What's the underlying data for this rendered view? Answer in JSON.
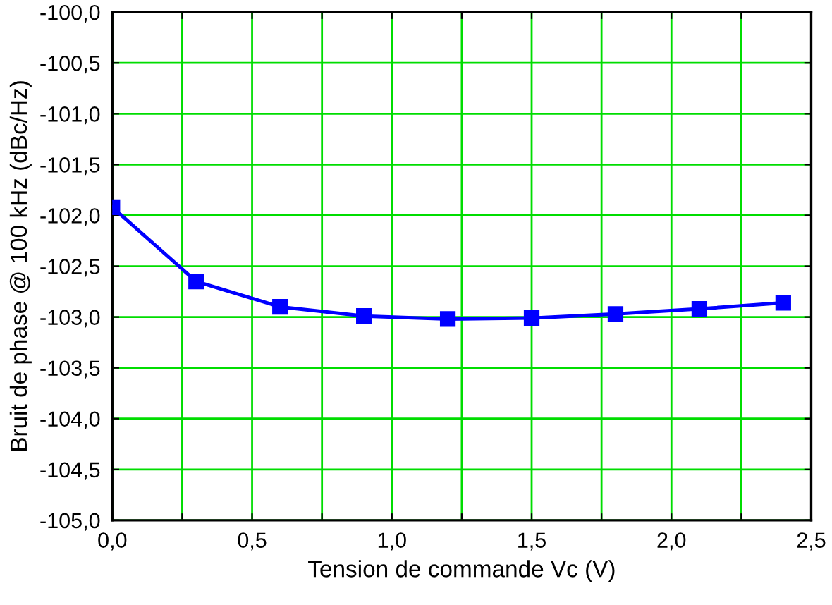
{
  "chart_data": {
    "type": "line",
    "xlabel": "Tension de commande Vc (V)",
    "ylabel": "Bruit de phase @ 100 kHz (dBc/Hz)",
    "x": [
      0,
      0.3,
      0.6,
      0.9,
      1.2,
      1.5,
      1.8,
      2.1,
      2.4
    ],
    "series": [
      {
        "color": "#0000ff",
        "values": [
          -101.92,
          -102.65,
          -102.9,
          -102.99,
          -103.02,
          -103.01,
          -102.97,
          -102.92,
          -102.86
        ]
      }
    ],
    "xlim": [
      0,
      2.5
    ],
    "xticks": [
      {
        "value": 0,
        "label": "0,0"
      },
      {
        "value": 0.25,
        "label": null
      },
      {
        "value": 0.5,
        "label": "0,5"
      },
      {
        "value": 0.75,
        "label": null
      },
      {
        "value": 1,
        "label": "1,0"
      },
      {
        "value": 1.25,
        "label": null
      },
      {
        "value": 1.5,
        "label": "1,5"
      },
      {
        "value": 1.75,
        "label": null
      },
      {
        "value": 2,
        "label": "2,0"
      },
      {
        "value": 2.25,
        "label": null
      },
      {
        "value": 2.5,
        "label": "2,5"
      }
    ],
    "ylim": [
      -105,
      -100
    ],
    "yticks": [
      {
        "value": -105,
        "label": "-105,0"
      },
      {
        "value": -104.5,
        "label": "-104,5"
      },
      {
        "value": -104,
        "label": "-104,0"
      },
      {
        "value": -103.5,
        "label": "-103,5"
      },
      {
        "value": -103,
        "label": "-103,0"
      },
      {
        "value": -102.5,
        "label": "-102,5"
      },
      {
        "value": -102,
        "label": "-102,0"
      },
      {
        "value": -101.5,
        "label": "-101,5"
      },
      {
        "value": -101,
        "label": "-101,0"
      },
      {
        "value": -100.5,
        "label": "-100,5"
      },
      {
        "value": -100,
        "label": "-100,0"
      }
    ],
    "grid": true,
    "marker": "square",
    "line_style": "solid"
  }
}
